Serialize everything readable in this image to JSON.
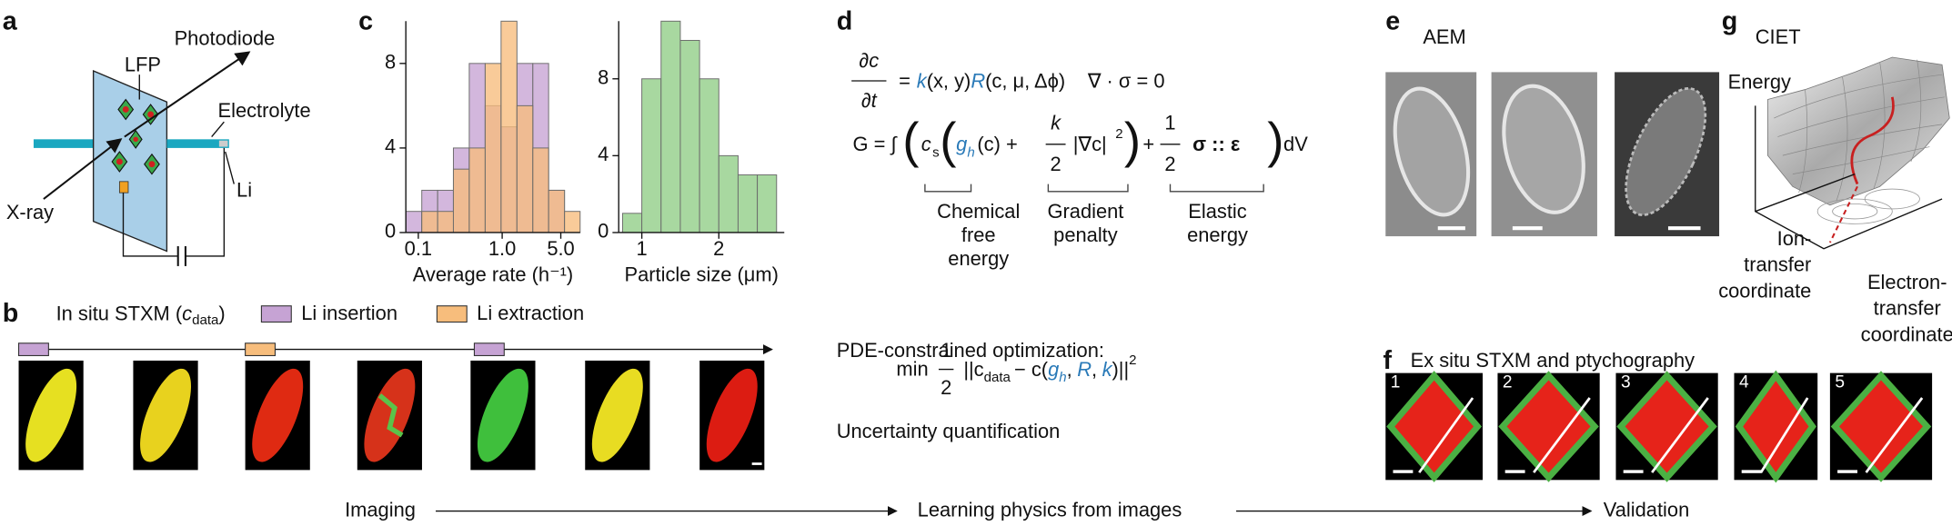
{
  "a": {
    "letter": "a",
    "photodiode": "Photodiode",
    "lfp": "LFP",
    "electrolyte": "Electrolyte",
    "xray": "X-ray",
    "li": "Li"
  },
  "b": {
    "letter": "b",
    "title": "In situ STXM (",
    "c": "c",
    "sub": "data",
    "close": ")"
  },
  "c": {
    "letter": "c"
  },
  "d": {
    "letter": "d",
    "eq1": {
      "num": "∂c",
      "den": "∂t",
      "eq": "=",
      "k": "k",
      "xy": "(x, y)",
      "R": "R",
      "args": "(c, μ, Δϕ)",
      "div": "∇ · σ = 0"
    },
    "eq2": {
      "G": "G = ∫",
      "p1": "(",
      "c": "c",
      "s": "s",
      "p2": "(",
      "g": "g",
      "h": "h",
      "gc": "(c) +",
      "kn": "k",
      "kd": "2",
      "grad": "|∇c|",
      "sq": "2",
      "p3": ")",
      "plus": "+",
      "on": "1",
      "od": "2",
      "el": "σ :: ε",
      "p4": ")",
      "dv": "dV"
    },
    "terms": [
      [
        "Chemical",
        "free",
        "energy"
      ],
      [
        "Gradient",
        "penalty"
      ],
      [
        "Elastic",
        "energy"
      ]
    ],
    "pde": "PDE-constrained optimization:",
    "eq3": {
      "min": "min",
      "n": "1",
      "d": "2",
      "norm": "||c",
      "data": "data",
      "minus": "− c(",
      "g": "g",
      "h": "h",
      "c1": ",",
      "R": "R",
      "c2": ",",
      "k": "k",
      "close": ")||",
      "sq": "2"
    },
    "uq": "Uncertainty quantification"
  },
  "e": {
    "letter": "e",
    "title": "AEM"
  },
  "f": {
    "letter": "f",
    "title": "Ex situ STXM and ptychography",
    "images": [
      "1",
      "2",
      "3",
      "4",
      "5"
    ]
  },
  "g": {
    "letter": "g",
    "title": "CIET",
    "energy": "Energy",
    "ion": [
      "Ion-",
      "transfer",
      "coordinate"
    ],
    "electron": [
      "Electron-",
      "transfer",
      "coordinate"
    ]
  },
  "flow": {
    "imaging": "Imaging",
    "learning": "Learning physics from images",
    "validation": "Validation"
  },
  "chart_data": [
    {
      "type": "histogram",
      "xlabel": "Average rate (h⁻¹)",
      "xscale": "log",
      "bins": [
        0.071,
        0.11,
        0.17,
        0.262,
        0.405,
        0.627,
        0.97,
        1.5,
        2.32,
        3.58,
        5.54,
        8.5
      ],
      "series": [
        {
          "name": "Li insertion",
          "color": "#c6a3d4",
          "values": [
            1,
            2,
            2,
            4,
            8,
            6,
            5,
            8,
            8,
            2,
            0
          ]
        },
        {
          "name": "Li extraction",
          "color": "#f7bd7c",
          "values": [
            0,
            1,
            1,
            3,
            4,
            8,
            10,
            6,
            4,
            2,
            1
          ]
        }
      ],
      "xlim": [
        0.071,
        8.5
      ],
      "xticks": [
        0.1,
        {
          "value": 1,
          "label": "1.0"
        },
        {
          "value": 5,
          "label": "5.0"
        }
      ],
      "ylim": [
        0,
        10
      ],
      "yticks": [
        0,
        4,
        8
      ]
    },
    {
      "type": "histogram",
      "xlabel": "Particle size (μm)",
      "xscale": "linear",
      "bins": [
        0.75,
        1.0,
        1.25,
        1.5,
        1.75,
        2.0,
        2.25,
        2.5,
        2.75
      ],
      "series": [
        {
          "color": "#a8d8a0",
          "values": [
            1,
            8,
            11,
            10,
            8,
            4,
            3,
            3
          ]
        }
      ],
      "xlim": [
        0.7,
        2.85
      ],
      "xticks": [
        1,
        2
      ],
      "ylim": [
        0,
        11
      ],
      "yticks": [
        0,
        4,
        8
      ]
    }
  ]
}
